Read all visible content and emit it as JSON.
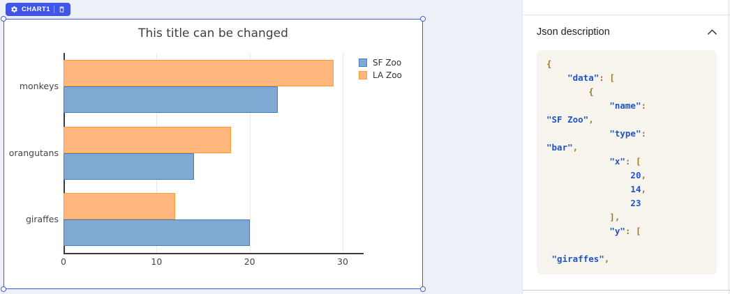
{
  "canvas": {
    "badge_label": "CHART1",
    "badge_icons": [
      "gear-icon",
      "trash-icon"
    ]
  },
  "colors": {
    "accent_blue": "#4156e8",
    "selection_blue": "#3d5be0",
    "canvas_background": "#edf0f6",
    "code_background": "#f7f3ed",
    "code_key_blue": "#2054c8",
    "code_punct_olive": "#9c7c2e",
    "sf_zoo_fill": "#7fa8d2",
    "sf_zoo_border": "#3c80bf",
    "la_zoo_fill": "#ffb77e",
    "la_zoo_border": "#ff9933",
    "axis_dark": "#3a3a3a",
    "gridline": "#e8e8e8"
  },
  "chart_data": {
    "type": "bar",
    "orientation": "h",
    "title": "This title can be changed",
    "xlabel": "",
    "ylabel": "",
    "categories": [
      "giraffes",
      "orangutans",
      "monkeys"
    ],
    "categories_order": "bottom-to-top",
    "series": [
      {
        "name": "SF Zoo",
        "values": [
          20,
          14,
          23
        ],
        "fill": "#7fa8d2",
        "border": "#3c80bf"
      },
      {
        "name": "LA Zoo",
        "values": [
          12,
          18,
          29
        ],
        "fill": "#ffb77e",
        "border": "#ff9933"
      }
    ],
    "xticks": [
      0,
      10,
      20,
      30
    ],
    "xlim": [
      0,
      32.25
    ],
    "grid": true,
    "legend_position": "top-right"
  },
  "json_panel": {
    "title": "Json description",
    "collapse_icon": "chevron-up-icon",
    "code_lines": [
      [
        [
          "p",
          "{"
        ]
      ],
      [
        [
          "p",
          "    "
        ],
        [
          "k",
          "\"data\""
        ],
        [
          "p",
          ": ["
        ]
      ],
      [
        [
          "p",
          "        {"
        ]
      ],
      [
        [
          "p",
          "            "
        ],
        [
          "k",
          "\"name\""
        ],
        [
          "p",
          ":"
        ]
      ],
      [
        [
          "k",
          "\"SF Zoo\""
        ],
        [
          "p",
          ","
        ]
      ],
      [
        [
          "p",
          "            "
        ],
        [
          "k",
          "\"type\""
        ],
        [
          "p",
          ":"
        ]
      ],
      [
        [
          "k",
          "\"bar\""
        ],
        [
          "p",
          ","
        ]
      ],
      [
        [
          "p",
          "            "
        ],
        [
          "k",
          "\"x\""
        ],
        [
          "p",
          ": ["
        ]
      ],
      [
        [
          "p",
          "                "
        ],
        [
          "k",
          "20"
        ],
        [
          "p",
          ","
        ]
      ],
      [
        [
          "p",
          "                "
        ],
        [
          "k",
          "14"
        ],
        [
          "p",
          ","
        ]
      ],
      [
        [
          "p",
          "                "
        ],
        [
          "k",
          "23"
        ]
      ],
      [
        [
          "p",
          "            ],"
        ]
      ],
      [
        [
          "p",
          "            "
        ],
        [
          "k",
          "\"y\""
        ],
        [
          "p",
          ": ["
        ]
      ],
      [],
      [
        [
          "p",
          " "
        ],
        [
          "k",
          "\"giraffes\""
        ],
        [
          "p",
          ","
        ]
      ]
    ]
  }
}
